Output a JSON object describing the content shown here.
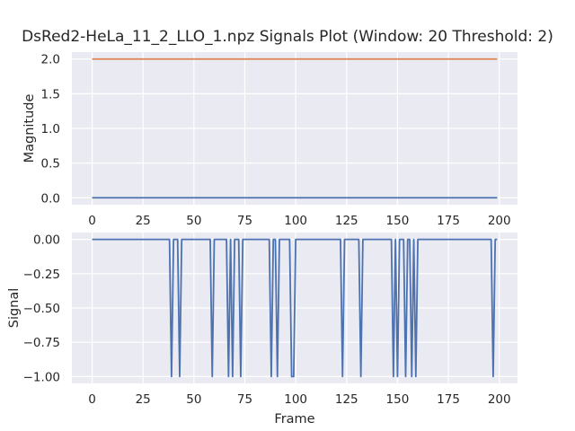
{
  "figure": {
    "title": "DsRed2-HeLa_11_2_LLO_1.npz Signals Plot (Window: 20 Threshold: 2)"
  },
  "colors": {
    "background": "#ffffff",
    "axes_bg": "#eaeaf2",
    "grid": "#ffffff",
    "series_blue": "#4c72b0",
    "series_orange": "#dd8452",
    "text": "#262626"
  },
  "chart_data": [
    {
      "type": "line",
      "title": "",
      "xlabel": "",
      "ylabel": "Magnitude",
      "xlim": [
        -9.95,
        208.95
      ],
      "ylim": [
        -0.1,
        2.1
      ],
      "grid": true,
      "xticks": [
        0,
        25,
        50,
        75,
        100,
        125,
        150,
        175,
        200
      ],
      "xtick_labels": [
        "0",
        "25",
        "50",
        "75",
        "100",
        "125",
        "150",
        "175",
        "200"
      ],
      "yticks": [
        0,
        0.5,
        1,
        1.5,
        2
      ],
      "ytick_labels": [
        "0.0",
        "0.5",
        "1.0",
        "1.5",
        "2.0"
      ],
      "series": [
        {
          "color": "#4c72b0",
          "x": [
            0,
            199
          ],
          "y": [
            0,
            0
          ]
        },
        {
          "color": "#dd8452",
          "x": [
            0,
            199
          ],
          "y": [
            2,
            2
          ]
        }
      ]
    },
    {
      "type": "line",
      "title": "",
      "xlabel": "Frame",
      "ylabel": "Signal",
      "xlim": [
        -9.95,
        208.95
      ],
      "ylim": [
        -1.05,
        0.05
      ],
      "grid": true,
      "xticks": [
        0,
        25,
        50,
        75,
        100,
        125,
        150,
        175,
        200
      ],
      "xtick_labels": [
        "0",
        "25",
        "50",
        "75",
        "100",
        "125",
        "150",
        "175",
        "200"
      ],
      "yticks": [
        0,
        -0.25,
        -0.5,
        -0.75,
        -1
      ],
      "ytick_labels": [
        "0.00",
        "−0.25",
        "−0.50",
        "−0.75",
        "−1.00"
      ],
      "series": [
        {
          "color": "#4c72b0",
          "x": [
            0,
            38,
            39,
            40,
            41,
            42,
            43,
            44,
            58,
            59,
            60,
            66,
            67,
            68,
            69,
            70,
            72,
            73,
            74,
            87,
            88,
            89,
            90,
            91,
            92,
            93,
            97,
            98,
            99,
            100,
            122,
            123,
            124,
            131,
            132,
            133,
            147,
            148,
            149,
            150,
            151,
            153,
            154,
            155,
            156,
            157,
            158,
            159,
            160,
            196,
            197,
            198,
            199
          ],
          "y": [
            0,
            0,
            -1,
            0,
            0,
            0,
            -1,
            0,
            0,
            -1,
            0,
            0,
            -1,
            0,
            -1,
            0,
            0,
            -1,
            0,
            0,
            -1,
            0,
            0,
            -1,
            0,
            0,
            0,
            -1,
            -1,
            0,
            0,
            -1,
            0,
            0,
            -1,
            0,
            0,
            -1,
            0,
            -1,
            0,
            0,
            -1,
            0,
            0,
            -1,
            0,
            -1,
            0,
            0,
            -1,
            0,
            0
          ]
        }
      ]
    }
  ]
}
